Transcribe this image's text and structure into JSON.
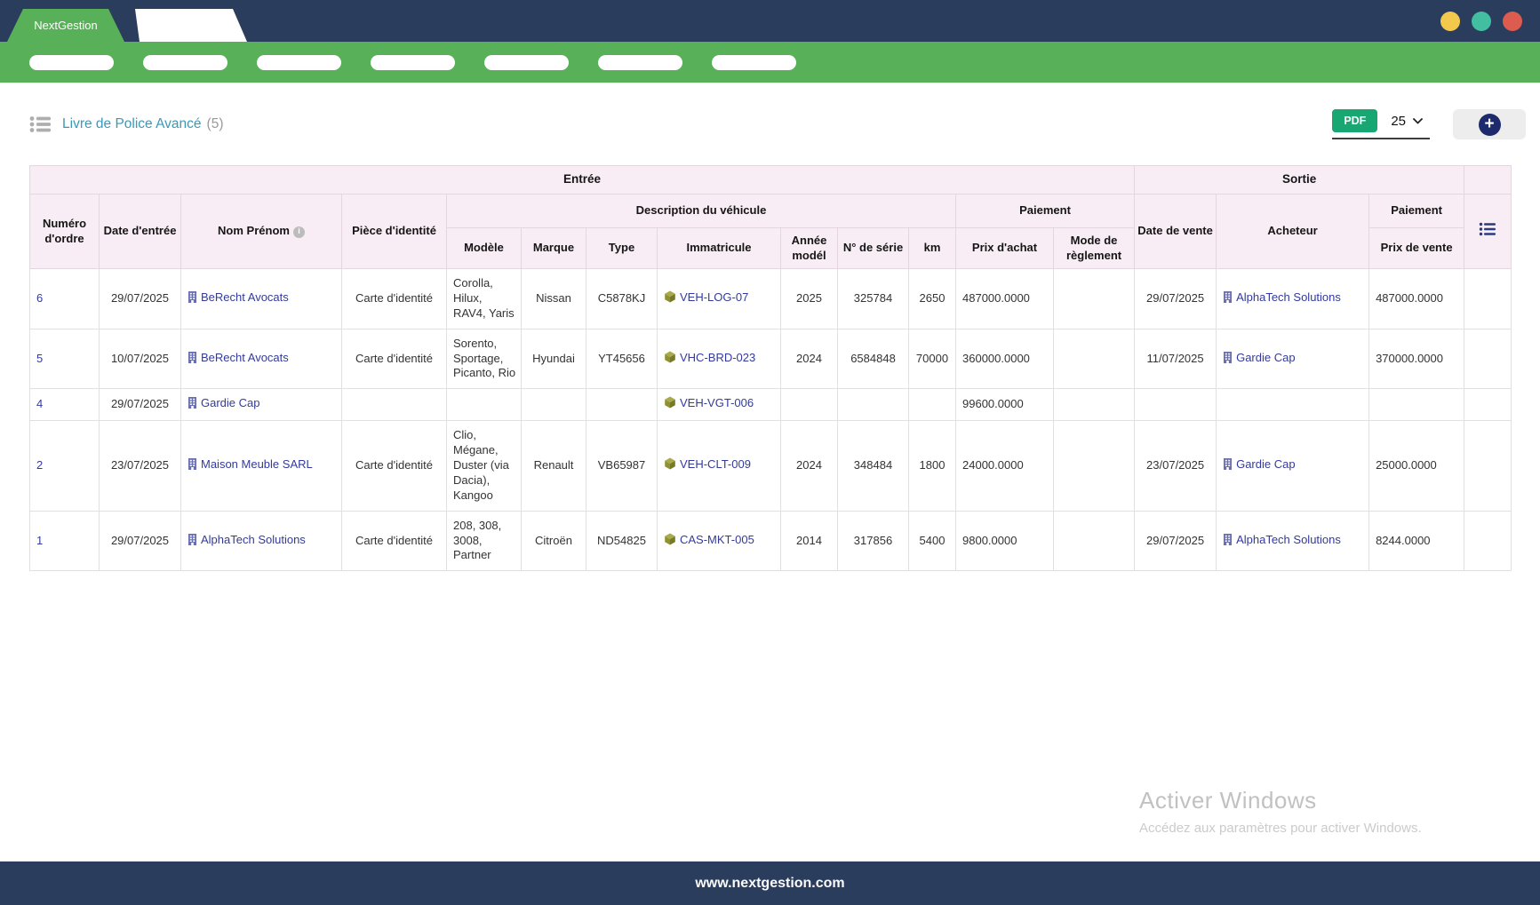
{
  "window": {
    "brand": "NextGestion",
    "traffic_light_colors": {
      "minimize": "#f3c94d",
      "maximize": "#41bfa0",
      "close": "#de5b50"
    }
  },
  "colors": {
    "navy": "#2b3d5c",
    "accent_green": "#58b158",
    "pdf_button_green": "#18a673",
    "link_blue": "#333a9d",
    "header_pink": "#f8edf4"
  },
  "nav": {
    "pill_count": 7
  },
  "toolbar": {
    "title": "Livre de Police Avancé",
    "count": "(5)",
    "pdf_button": "PDF",
    "page_size": "25"
  },
  "table": {
    "group_headers": {
      "entree": "Entrée",
      "sortie": "Sortie"
    },
    "sub_headers": {
      "numero": "Numéro d'ordre",
      "date_entree": "Date d'entrée",
      "nom": "Nom Prénom",
      "piece": "Pièce d'identité",
      "description": "Description du véhicule",
      "paiement_entree": "Paiement",
      "date_vente": "Date de vente",
      "acheteur": "Acheteur",
      "paiement_sortie": "Paiement",
      "modele": "Modèle",
      "marque": "Marque",
      "type": "Type",
      "immatricule": "Immatricule",
      "annee": "Année modél",
      "serie": "N° de série",
      "km": "km",
      "prix_achat": "Prix d'achat",
      "mode_reglement": "Mode de règlement",
      "prix_vente": "Prix de vente"
    },
    "rows": [
      {
        "numero": "6",
        "date_entree": "29/07/2025",
        "nom": "BeRecht Avocats",
        "piece": "Carte d'identité",
        "modele": "Corolla, Hilux, RAV4, Yaris",
        "marque": "Nissan",
        "type": "C5878KJ",
        "immatricule": "VEH-LOG-07",
        "annee": "2025",
        "serie": "325784",
        "km": "2650",
        "prix_achat": "487000.0000",
        "mode_reglement": "",
        "date_vente": "29/07/2025",
        "acheteur": "AlphaTech Solutions",
        "prix_vente": "487000.0000"
      },
      {
        "numero": "5",
        "date_entree": "10/07/2025",
        "nom": "BeRecht Avocats",
        "piece": "Carte d'identité",
        "modele": "Sorento, Sportage, Picanto, Rio",
        "marque": "Hyundai",
        "type": "YT45656",
        "immatricule": "VHC-BRD-023",
        "annee": "2024",
        "serie": "6584848",
        "km": "70000",
        "prix_achat": "360000.0000",
        "mode_reglement": "",
        "date_vente": "11/07/2025",
        "acheteur": "Gardie Cap",
        "prix_vente": "370000.0000"
      },
      {
        "numero": "4",
        "date_entree": "29/07/2025",
        "nom": "Gardie Cap",
        "piece": "",
        "modele": "",
        "marque": "",
        "type": "",
        "immatricule": "VEH-VGT-006",
        "annee": "",
        "serie": "",
        "km": "",
        "prix_achat": "99600.0000",
        "mode_reglement": "",
        "date_vente": "",
        "acheteur": "",
        "prix_vente": ""
      },
      {
        "numero": "2",
        "date_entree": "23/07/2025",
        "nom": "Maison Meuble SARL",
        "piece": "Carte d'identité",
        "modele": "Clio, Mégane, Duster (via Dacia), Kangoo",
        "marque": "Renault",
        "type": "VB65987",
        "immatricule": "VEH-CLT-009",
        "annee": "2024",
        "serie": "348484",
        "km": "1800",
        "prix_achat": "24000.0000",
        "mode_reglement": "",
        "date_vente": "23/07/2025",
        "acheteur": "Gardie Cap",
        "prix_vente": "25000.0000"
      },
      {
        "numero": "1",
        "date_entree": "29/07/2025",
        "nom": "AlphaTech Solutions",
        "piece": "Carte d'identité",
        "modele": "208, 308, 3008, Partner",
        "marque": "Citroën",
        "type": "ND54825",
        "immatricule": "CAS-MKT-005",
        "annee": "2014",
        "serie": "317856",
        "km": "5400",
        "prix_achat": "9800.0000",
        "mode_reglement": "",
        "date_vente": "29/07/2025",
        "acheteur": "AlphaTech Solutions",
        "prix_vente": "8244.0000"
      }
    ]
  },
  "watermark": {
    "title": "Activer Windows",
    "subtitle": "Accédez aux paramètres pour activer Windows."
  },
  "footer": {
    "url": "www.nextgestion.com"
  }
}
